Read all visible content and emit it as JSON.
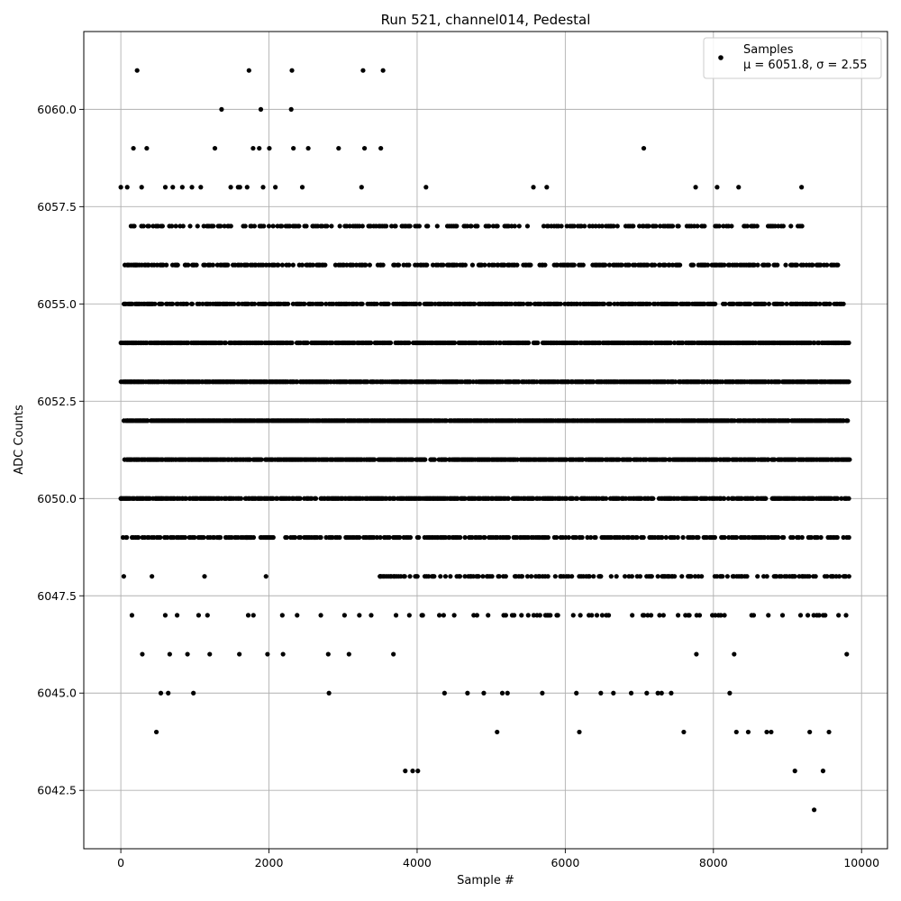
{
  "chart_data": {
    "type": "scatter",
    "title": "Run 521, channel014, Pedestal",
    "xlabel": "Sample #",
    "ylabel": "ADC Counts",
    "xlim": [
      -500,
      10350
    ],
    "ylim": [
      6041.0,
      6062.0
    ],
    "xticks": [
      {
        "value": 0,
        "label": "0"
      },
      {
        "value": 2000,
        "label": "2000"
      },
      {
        "value": 4000,
        "label": "4000"
      },
      {
        "value": 6000,
        "label": "6000"
      },
      {
        "value": 8000,
        "label": "8000"
      },
      {
        "value": 10000,
        "label": "10000"
      }
    ],
    "yticks": [
      {
        "value": 6042.5,
        "label": "6042.5"
      },
      {
        "value": 6045.0,
        "label": "6045.0"
      },
      {
        "value": 6047.5,
        "label": "6047.5"
      },
      {
        "value": 6050.0,
        "label": "6050.0"
      },
      {
        "value": 6052.5,
        "label": "6052.5"
      },
      {
        "value": 6055.0,
        "label": "6055.0"
      },
      {
        "value": 6057.5,
        "label": "6057.5"
      },
      {
        "value": 6060.0,
        "label": "6060.0"
      }
    ],
    "grid": true,
    "legend": {
      "placement": "top-right",
      "label": "Samples",
      "stats": "μ = 6051.8, σ = 2.55"
    },
    "marker_color": "#000000",
    "series": [
      {
        "name": "Samples",
        "points": [
          [
            0,
            6050
          ],
          [
            0,
            6058
          ],
          [
            40,
            6048
          ],
          [
            80,
            6049
          ],
          [
            150,
            6047
          ],
          [
            170,
            6059
          ],
          [
            220,
            6061
          ],
          [
            290,
            6046
          ],
          [
            350,
            6059
          ],
          [
            420,
            6048
          ],
          [
            480,
            6044
          ],
          [
            540,
            6045
          ],
          [
            600,
            6047
          ],
          [
            640,
            6045
          ],
          [
            660,
            6046
          ],
          [
            760,
            6047
          ],
          [
            830,
            6058
          ],
          [
            900,
            6046
          ],
          [
            960,
            6058
          ],
          [
            980,
            6045
          ],
          [
            1050,
            6047
          ],
          [
            1130,
            6048
          ],
          [
            1170,
            6047
          ],
          [
            1200,
            6046
          ],
          [
            1270,
            6059
          ],
          [
            1330,
            6049
          ],
          [
            1360,
            6060
          ],
          [
            1600,
            6046
          ],
          [
            1700,
            6049
          ],
          [
            1720,
            6047
          ],
          [
            1730,
            6061
          ],
          [
            1790,
            6047
          ],
          [
            1890,
            6060
          ],
          [
            1960,
            6048
          ],
          [
            1980,
            6046
          ],
          [
            2180,
            6047
          ],
          [
            2190,
            6046
          ],
          [
            2300,
            6060
          ],
          [
            2310,
            6061
          ],
          [
            2330,
            6059
          ],
          [
            2380,
            6047
          ],
          [
            2530,
            6059
          ],
          [
            2700,
            6047
          ],
          [
            2800,
            6046
          ],
          [
            2810,
            6045
          ],
          [
            2940,
            6059
          ],
          [
            3020,
            6047
          ],
          [
            3080,
            6046
          ],
          [
            3220,
            6047
          ],
          [
            3250,
            6058
          ],
          [
            3270,
            6061
          ],
          [
            3290,
            6059
          ],
          [
            3380,
            6047
          ],
          [
            3500,
            6048
          ],
          [
            3510,
            6059
          ],
          [
            3540,
            6061
          ],
          [
            3680,
            6046
          ],
          [
            3840,
            6043
          ],
          [
            3940,
            6043
          ],
          [
            4010,
            6043
          ],
          [
            4120,
            6058
          ],
          [
            4370,
            6045
          ],
          [
            4520,
            6057
          ],
          [
            4680,
            6045
          ],
          [
            4900,
            6045
          ],
          [
            5080,
            6044
          ],
          [
            5150,
            6045
          ],
          [
            5220,
            6045
          ],
          [
            5500,
            6047
          ],
          [
            5570,
            6058
          ],
          [
            5690,
            6045
          ],
          [
            5750,
            6058
          ],
          [
            6150,
            6045
          ],
          [
            6190,
            6044
          ],
          [
            6480,
            6045
          ],
          [
            6650,
            6045
          ],
          [
            6890,
            6045
          ],
          [
            7060,
            6059
          ],
          [
            7100,
            6045
          ],
          [
            7250,
            6045
          ],
          [
            7300,
            6045
          ],
          [
            7430,
            6045
          ],
          [
            7600,
            6044
          ],
          [
            7760,
            6058
          ],
          [
            7770,
            6046
          ],
          [
            8050,
            6058
          ],
          [
            8100,
            6047
          ],
          [
            8220,
            6045
          ],
          [
            8280,
            6046
          ],
          [
            8310,
            6044
          ],
          [
            8340,
            6058
          ],
          [
            8470,
            6044
          ],
          [
            8590,
            6057
          ],
          [
            8720,
            6044
          ],
          [
            8780,
            6044
          ],
          [
            9100,
            6043
          ],
          [
            9190,
            6058
          ],
          [
            9300,
            6044
          ],
          [
            9360,
            6042
          ],
          [
            9480,
            6043
          ],
          [
            9560,
            6044
          ],
          [
            9680,
            6056
          ],
          [
            9800,
            6046
          ]
        ],
        "dense_rows": [
          {
            "y": 6049,
            "x_min": 0,
            "x_max": 9840,
            "density": 0.5
          },
          {
            "y": 6050,
            "x_min": 0,
            "x_max": 9840,
            "density": 0.72
          },
          {
            "y": 6051,
            "x_min": 50,
            "x_max": 9840,
            "density": 0.8
          },
          {
            "y": 6052,
            "x_min": 0,
            "x_max": 9840,
            "density": 0.9
          },
          {
            "y": 6053,
            "x_min": 0,
            "x_max": 9840,
            "density": 0.85
          },
          {
            "y": 6054,
            "x_min": 0,
            "x_max": 9840,
            "density": 0.75
          },
          {
            "y": 6055,
            "x_min": 0,
            "x_max": 9840,
            "density": 0.6
          },
          {
            "y": 6056,
            "x_min": 0,
            "x_max": 9700,
            "density": 0.45
          },
          {
            "y": 6057,
            "x_min": 0,
            "x_max": 9200,
            "density": 0.3
          },
          {
            "y": 6048,
            "x_min": 3500,
            "x_max": 9840,
            "density": 0.35
          },
          {
            "y": 6047,
            "x_min": 3700,
            "x_max": 9840,
            "density": 0.15
          },
          {
            "y": 6058,
            "x_min": 0,
            "x_max": 2800,
            "density": 0.12
          },
          {
            "y": 6059,
            "x_min": 1700,
            "x_max": 2050,
            "density": 0.2
          }
        ]
      }
    ]
  }
}
